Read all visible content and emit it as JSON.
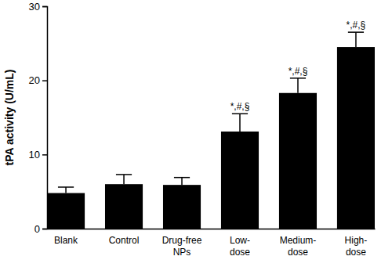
{
  "chart_data": {
    "type": "bar",
    "y_label": "tPA activity (U/mL)",
    "categories": [
      "Blank",
      "Control",
      "Drug-free NPs",
      "Low-dose",
      "Medium-dose",
      "High-dose"
    ],
    "values": [
      4.8,
      6.0,
      5.9,
      13.1,
      18.3,
      24.5
    ],
    "errors": [
      0.8,
      1.3,
      1.0,
      2.4,
      2.0,
      2.0
    ],
    "significance_labels": [
      null,
      null,
      null,
      "*,#,§",
      "*,#,§",
      "*,#,§"
    ],
    "color": "#000000",
    "ylim": [
      0,
      30
    ],
    "yticks": [
      0,
      10,
      20,
      30
    ],
    "grid": false
  }
}
